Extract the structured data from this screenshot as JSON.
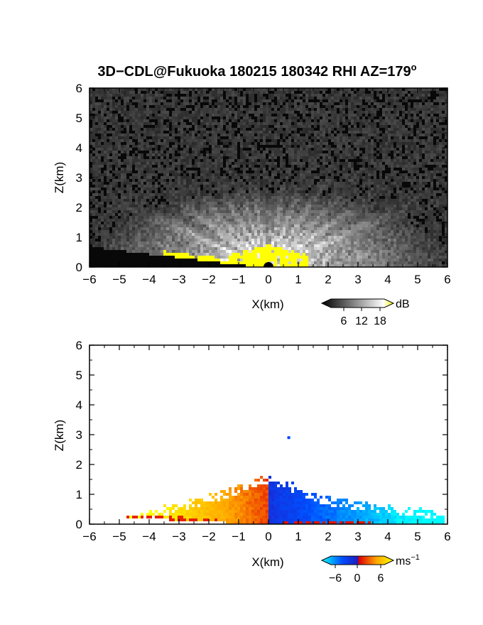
{
  "figure": {
    "title_main": "3D−CDL@Fukuoka 180215 180342 RHI AZ=179",
    "title_sup": "o"
  },
  "chart_data": [
    {
      "type": "heatmap",
      "name": "reflectivity",
      "xlabel": "X(km)",
      "ylabel": "Z(km)",
      "xlim": [
        -6,
        6
      ],
      "ylim": [
        0,
        6
      ],
      "xticks": [
        "−6",
        "−5",
        "−4",
        "−3",
        "−2",
        "−1",
        "0",
        "1",
        "2",
        "3",
        "4",
        "5",
        "6"
      ],
      "yticks": [
        "0",
        "1",
        "2",
        "3",
        "4",
        "5",
        "6"
      ],
      "colorbar": {
        "label": "dB",
        "ticks": [
          "6",
          "12",
          "18"
        ],
        "range": [
          0,
          21
        ],
        "colors": [
          "#000000",
          "#ffffff",
          "#ffff00"
        ]
      },
      "grid": false
    },
    {
      "type": "heatmap",
      "name": "doppler velocity",
      "xlabel": "X(km)",
      "ylabel": "Z(km)",
      "xlim": [
        -6,
        6
      ],
      "ylim": [
        0,
        6
      ],
      "xticks": [
        "−6",
        "−5",
        "−4",
        "−3",
        "−2",
        "−1",
        "0",
        "1",
        "2",
        "3",
        "4",
        "5",
        "6"
      ],
      "yticks": [
        "0",
        "1",
        "2",
        "3",
        "4",
        "5",
        "6"
      ],
      "colorbar": {
        "label_base": "ms",
        "label_sup": "−1",
        "ticks": [
          "−6",
          "0",
          "6"
        ],
        "range": [
          -9,
          9
        ],
        "colors": [
          "#00ffff",
          "#0050ff",
          "#e00000",
          "#ffa500",
          "#ffff00"
        ]
      },
      "grid": false
    }
  ]
}
